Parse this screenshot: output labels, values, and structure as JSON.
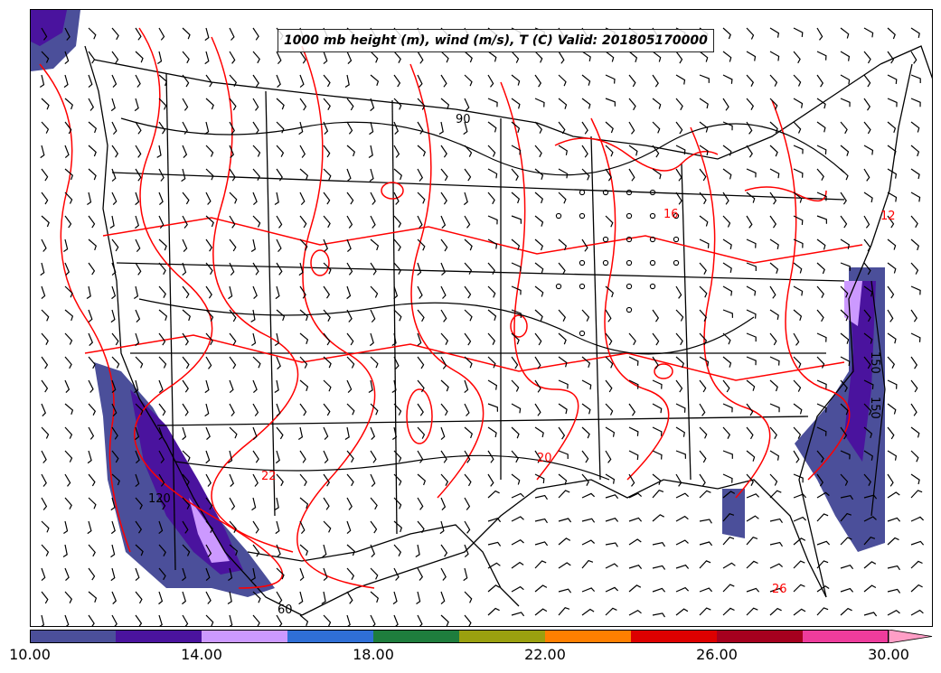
{
  "title": "1000 mb height (m), wind (m/s), T (C) Valid: 201805170000",
  "map": {
    "region": "Continental United States",
    "layers": [
      "temperature-fill",
      "height-contours",
      "temperature-contours",
      "wind-barbs",
      "state-borders",
      "coastlines"
    ],
    "contour_labels": [
      "150",
      "150",
      "60",
      "90",
      "120",
      "12",
      "16",
      "20",
      "22",
      "26"
    ],
    "colors": {
      "height_contour": "#000000",
      "temperature_contour": "#ff0000",
      "wind_barb": "#000000",
      "border": "#000000"
    }
  },
  "colorbar": {
    "min": 10.0,
    "max": 30.0,
    "extend": "max",
    "bins": [
      {
        "from": 10,
        "to": 12,
        "color": "#4b4f9a"
      },
      {
        "from": 12,
        "to": 14,
        "color": "#4a139e"
      },
      {
        "from": 14,
        "to": 16,
        "color": "#cc99ff"
      },
      {
        "from": 16,
        "to": 18,
        "color": "#2f6fd6"
      },
      {
        "from": 18,
        "to": 20,
        "color": "#1e7d3d"
      },
      {
        "from": 20,
        "to": 22,
        "color": "#9aa00f"
      },
      {
        "from": 22,
        "to": 24,
        "color": "#ff7f00"
      },
      {
        "from": 24,
        "to": 26,
        "color": "#dd0000"
      },
      {
        "from": 26,
        "to": 28,
        "color": "#a5001e"
      },
      {
        "from": 28,
        "to": 30,
        "color": "#ee3c9c"
      }
    ],
    "extend_color": "#ff9ec6",
    "tick_labels": [
      "10.00",
      "14.00",
      "18.00",
      "22.00",
      "26.00",
      "30.00"
    ]
  }
}
